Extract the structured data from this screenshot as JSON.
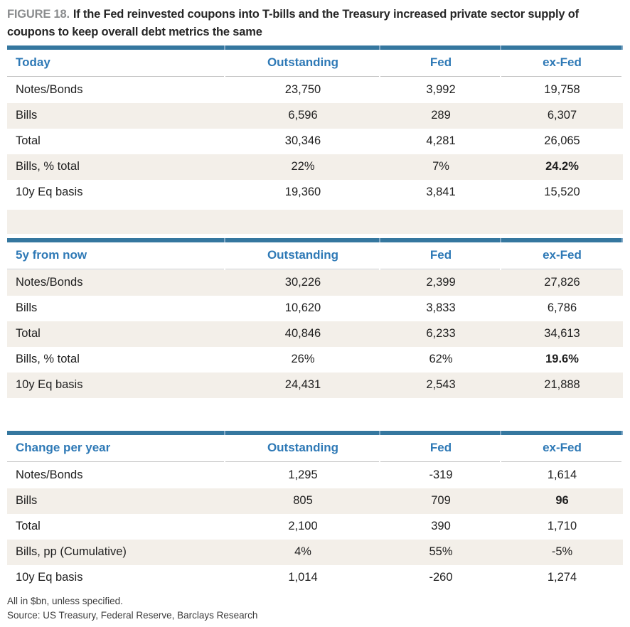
{
  "title": {
    "figure_label": "FIGURE 18.",
    "text": "If the Fed reinvested coupons into T-bills and the Treasury increased private sector supply of coupons to keep overall debt metrics the same"
  },
  "columns": [
    "Outstanding",
    "Fed",
    "ex-Fed"
  ],
  "tables": [
    {
      "name": "Today",
      "rows": [
        {
          "label": "Notes/Bonds",
          "values": [
            "23,750",
            "3,992",
            "19,758"
          ]
        },
        {
          "label": "Bills",
          "values": [
            "6,596",
            "289",
            "6,307"
          ]
        },
        {
          "label": "Total",
          "values": [
            "30,346",
            "4,281",
            "26,065"
          ]
        },
        {
          "label": "Bills, % total",
          "values": [
            "22%",
            "7%",
            "24.2%"
          ]
        },
        {
          "label": "10y Eq basis",
          "values": [
            "19,360",
            "3,841",
            "15,520"
          ]
        }
      ]
    },
    {
      "name": "5y from now",
      "rows": [
        {
          "label": "Notes/Bonds",
          "values": [
            "30,226",
            "2,399",
            "27,826"
          ]
        },
        {
          "label": "Bills",
          "values": [
            "10,620",
            "3,833",
            "6,786"
          ]
        },
        {
          "label": "Total",
          "values": [
            "40,846",
            "6,233",
            "34,613"
          ]
        },
        {
          "label": "Bills, % total",
          "values": [
            "26%",
            "62%",
            "19.6%"
          ]
        },
        {
          "label": "10y Eq basis",
          "values": [
            "24,431",
            "2,543",
            "21,888"
          ]
        }
      ]
    },
    {
      "name": "Change per year",
      "rows": [
        {
          "label": "Notes/Bonds",
          "values": [
            "1,295",
            "-319",
            "1,614"
          ]
        },
        {
          "label": "Bills",
          "values": [
            "805",
            "709",
            "96"
          ]
        },
        {
          "label": "Total",
          "values": [
            "2,100",
            "390",
            "1,710"
          ]
        },
        {
          "label": "Bills, pp (Cumulative)",
          "values": [
            "4%",
            "55%",
            "-5%"
          ]
        },
        {
          "label": "10y Eq basis",
          "values": [
            "1,014",
            "-260",
            "1,274"
          ]
        }
      ]
    }
  ],
  "footer": {
    "note": "All in $bn, unless specified.",
    "source": "Source: US Treasury, Federal Reserve, Barclays Research"
  },
  "colors": {
    "accent_blue_bar": "#35779f",
    "accent_blue_text": "#2e79b6",
    "stripe_beige": "#f3efe9",
    "figure_label_gray": "#8a8c8e"
  }
}
